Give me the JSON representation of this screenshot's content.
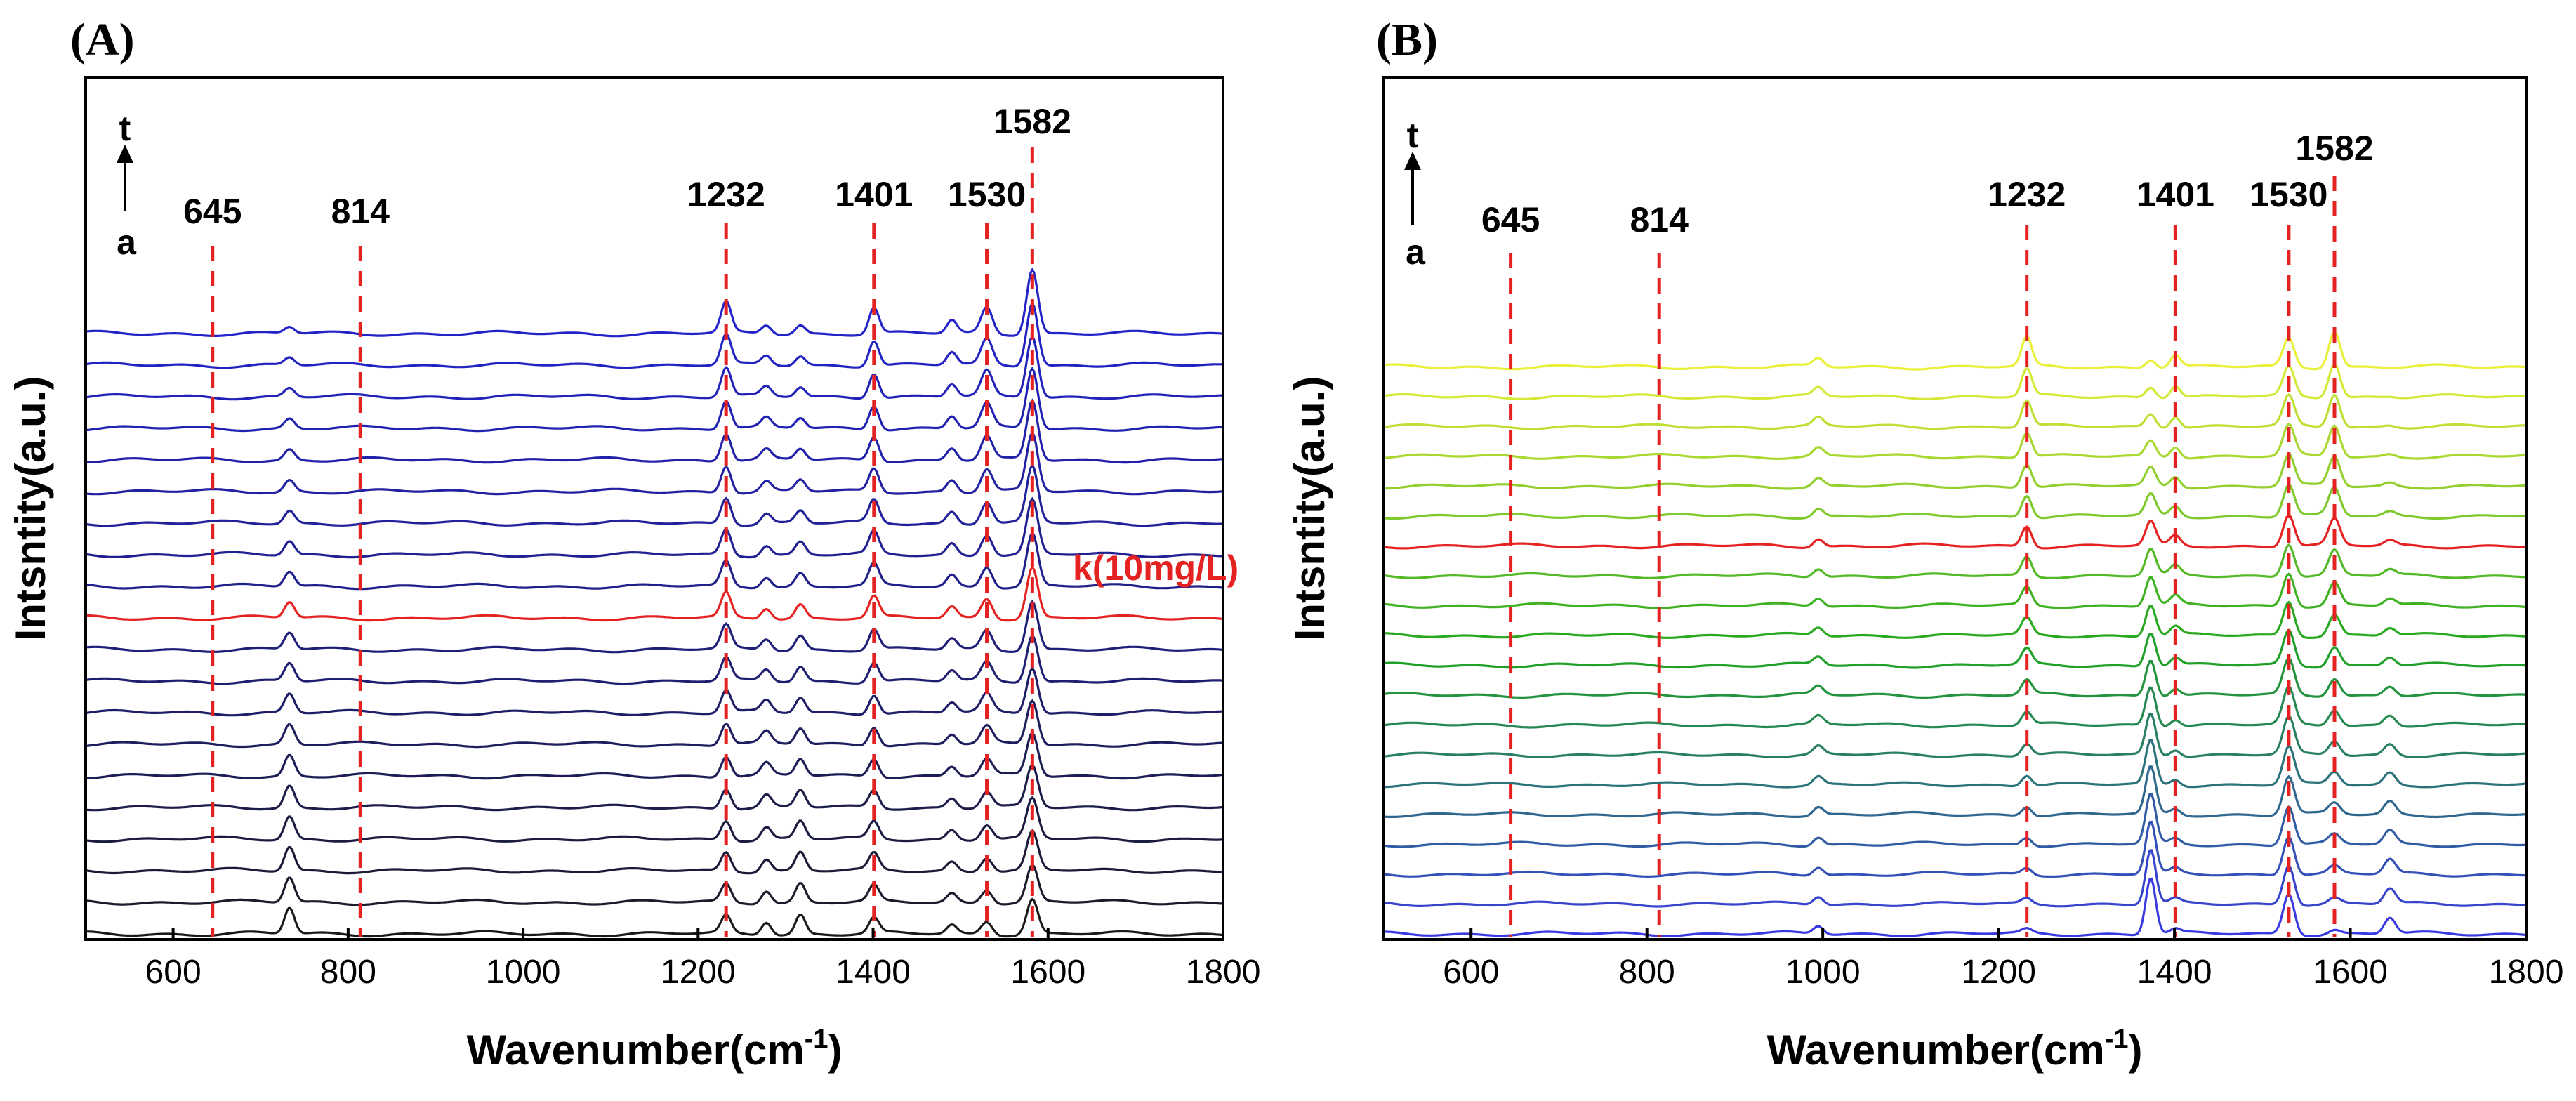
{
  "chart_data": [
    {
      "type": "line",
      "panel_label": "(A)",
      "xlabel": "Wavenumber(cm",
      "xlabel_sup": "-1",
      "xlabel_close": ")",
      "ylabel": "Intsntity(a.u.)",
      "xlim": [
        500,
        1800
      ],
      "xticks": [
        600,
        800,
        1000,
        1200,
        1400,
        1600,
        1800
      ],
      "grid": false,
      "yticks_shown": false,
      "time_arrow": {
        "top": "t",
        "bottom": "a"
      },
      "reference_peaks": [
        645,
        814,
        1232,
        1401,
        1530,
        1582
      ],
      "reference_line_color": "#e52222",
      "highlight_label": "k(10mg/L)",
      "spectra_count": 20,
      "highlight_index": 10,
      "bottom_color": "#1a1a1a",
      "top_color": "#2323c8",
      "highlight_color": "#e52222",
      "peaks_in_spectra": [
        {
          "center": 733,
          "relative_intensity_bottom": 0.6,
          "relative_intensity_top": 0.15
        },
        {
          "center": 1232,
          "relative_intensity_bottom": 0.4,
          "relative_intensity_top": 0.7
        },
        {
          "center": 1278,
          "relative_intensity_bottom": 0.3,
          "relative_intensity_top": 0.2
        },
        {
          "center": 1317,
          "relative_intensity_bottom": 0.45,
          "relative_intensity_top": 0.2
        },
        {
          "center": 1401,
          "relative_intensity_bottom": 0.35,
          "relative_intensity_top": 0.6
        },
        {
          "center": 1490,
          "relative_intensity_bottom": 0.2,
          "relative_intensity_top": 0.3
        },
        {
          "center": 1530,
          "relative_intensity_bottom": 0.3,
          "relative_intensity_top": 0.6
        },
        {
          "center": 1582,
          "relative_intensity_bottom": 0.8,
          "relative_intensity_top": 1.5
        }
      ]
    },
    {
      "type": "line",
      "panel_label": "(B)",
      "xlabel": "Wavenumber(cm",
      "xlabel_sup": "-1",
      "xlabel_close": ")",
      "ylabel": "Intsntity(a.u.)",
      "xlim": [
        500,
        1800
      ],
      "xticks": [
        600,
        800,
        1000,
        1200,
        1400,
        1600,
        1800
      ],
      "grid": false,
      "yticks_shown": false,
      "time_arrow": {
        "top": "t",
        "bottom": "a"
      },
      "reference_peaks": [
        645,
        814,
        1232,
        1401,
        1530,
        1582
      ],
      "reference_line_color": "#e52222",
      "spectra_count": 20,
      "highlight_index": 13,
      "bottom_color": "#3a3ae0",
      "mid_color": "#1fa51f",
      "top_color": "#e8f03a",
      "highlight_color": "#e52222",
      "peaks_in_spectra": [
        {
          "center": 995,
          "relative_intensity": 0.2
        },
        {
          "center": 1232,
          "relative_intensity_bottom": 0.1,
          "relative_intensity_top": 0.7
        },
        {
          "center": 1373,
          "relative_intensity_bottom": 1.4,
          "relative_intensity_top": 0.2
        },
        {
          "center": 1401,
          "relative_intensity_bottom": 0.1,
          "relative_intensity_top": 0.3
        },
        {
          "center": 1530,
          "relative_intensity_bottom": 1.0,
          "relative_intensity_top": 0.7
        },
        {
          "center": 1582,
          "relative_intensity_bottom": 0.1,
          "relative_intensity_top": 0.9
        },
        {
          "center": 1645,
          "relative_intensity_bottom": 0.4,
          "relative_intensity_top": 0.0
        }
      ]
    }
  ]
}
